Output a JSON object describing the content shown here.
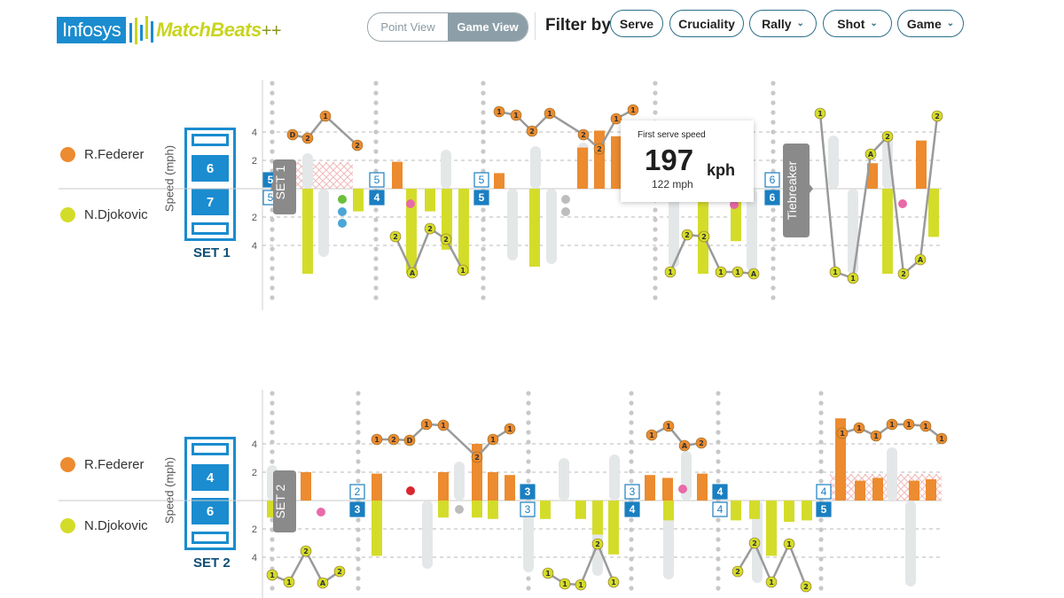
{
  "header": {
    "logo_left": "Infosys",
    "logo_right": "MatchBeats",
    "logo_suffix": "++",
    "view_options": [
      "Point View",
      "Game View"
    ],
    "active_view": "Game View",
    "filter_label": "Filter by",
    "filters": [
      {
        "label": "Serve",
        "dropdown": false
      },
      {
        "label": "Cruciality",
        "dropdown": false
      },
      {
        "label": "Rally",
        "dropdown": true
      },
      {
        "label": "Shot",
        "dropdown": true
      },
      {
        "label": "Game",
        "dropdown": true
      }
    ]
  },
  "colors": {
    "federer": "#ec8b2f",
    "djokovic": "#d4dc2a",
    "grey_bar": "#e4e7e8",
    "blue": "#1a7fc1",
    "line": "#9a9a9a"
  },
  "players": [
    {
      "name": "R.Federer",
      "color": "#ec8b2f"
    },
    {
      "name": "N.Djokovic",
      "color": "#d4dc2a"
    }
  ],
  "tooltip": {
    "title": "First serve speed",
    "value": "197",
    "unit": "kph",
    "sub": "122 mph"
  },
  "sets": [
    {
      "label": "SET 1",
      "side_tab": "SET 1",
      "tiebreak_tab": "Tiebreaker",
      "speed_axis": "Speed (mph)",
      "scores": [
        "6",
        "7"
      ],
      "y_ticks": [
        "4",
        "2",
        "2",
        "4"
      ],
      "game_markers": [
        {
          "top": "5",
          "bottom": "5"
        },
        {
          "top": "5",
          "bottom": "4"
        },
        {
          "top": "5",
          "bottom": "5"
        },
        {
          "top": "6",
          "bottom": "6"
        }
      ]
    },
    {
      "label": "SET 2",
      "side_tab": "SET 2",
      "speed_axis": "Speed (mph)",
      "scores": [
        "4",
        "6"
      ],
      "y_ticks": [
        "4",
        "2",
        "2",
        "4"
      ],
      "game_markers": [
        {
          "top": "2",
          "bottom": "3"
        },
        {
          "top": "3",
          "bottom": "3"
        },
        {
          "top": "3",
          "bottom": "4"
        },
        {
          "top": "4",
          "bottom": "4"
        },
        {
          "top": "4",
          "bottom": "5"
        }
      ]
    }
  ],
  "chart_data": [
    {
      "type": "bar",
      "title": "SET 1",
      "ylabel": "Speed (mph)",
      "yticks": [
        4,
        2,
        -2,
        -4
      ],
      "ylim": [
        -6,
        6
      ],
      "series": [
        {
          "name": "R.Federer",
          "values": [
            1.9,
            1.1,
            2.9,
            4.1,
            3.7,
            1.4,
            1.8,
            3.4,
            0,
            0,
            3.8,
            3.2
          ]
        },
        {
          "name": "N.Djokovic",
          "values": [
            -6.0,
            -1.6,
            -6.0,
            -1.6,
            -4.3,
            -6.0,
            -5.5,
            -6.0,
            -3.7,
            -6.0,
            -3.4,
            -6.0
          ]
        }
      ],
      "rally_labels_top": [
        "D",
        "2",
        "1",
        "2",
        "1",
        "1",
        "2",
        "1",
        "2",
        "2",
        "1",
        "1",
        "1",
        "2",
        "1"
      ],
      "rally_labels_bottom": [
        "2",
        "A",
        "2",
        "2",
        "1",
        "1",
        "2",
        "2",
        "1",
        "1",
        "A",
        "1",
        "1",
        "1",
        "A",
        "2"
      ]
    },
    {
      "type": "bar",
      "title": "SET 2",
      "ylabel": "Speed (mph)",
      "yticks": [
        4,
        2,
        -2,
        -4
      ],
      "ylim": [
        -6,
        6
      ],
      "series": [
        {
          "name": "R.Federer",
          "values": [
            2.0,
            1.9,
            2.0,
            4.0,
            2.0,
            1.8,
            1.8,
            1.6,
            1.9,
            5.8,
            1.4,
            1.6,
            1.4,
            1.5,
            1.6
          ]
        },
        {
          "name": "N.Djokovic",
          "values": [
            -1.2,
            -3.9,
            -1.2,
            -1.2,
            -1.3,
            -1.3,
            -1.3,
            -2.4,
            -3.8,
            -1.4,
            -1.4,
            -1.3,
            -3.9,
            -1.5,
            -1.4
          ]
        }
      ],
      "rally_labels_top": [
        "1",
        "2",
        "D",
        "1",
        "1",
        "2",
        "1",
        "1",
        "1",
        "1",
        "A",
        "2",
        "1",
        "1",
        "1",
        "1",
        "1",
        "1"
      ],
      "rally_labels_bottom": [
        "1",
        "1",
        "2",
        "A",
        "2",
        "1",
        "1",
        "1",
        "2",
        "1",
        "2",
        "2",
        "1",
        "1",
        "2",
        "1"
      ]
    }
  ]
}
